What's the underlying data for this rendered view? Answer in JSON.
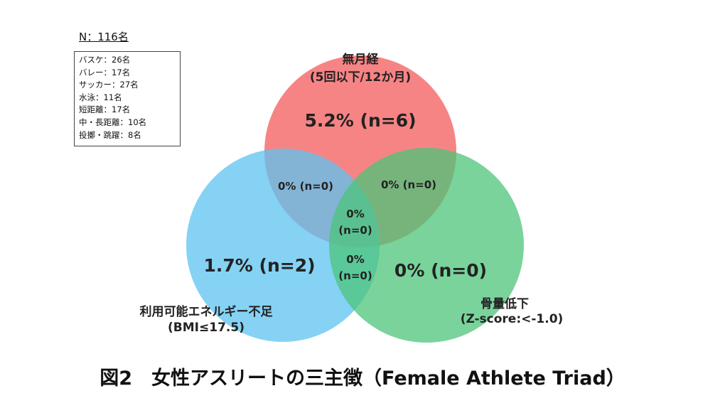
{
  "sample": {
    "total_label": "N：116名",
    "breakdown": [
      "バスケ：26名",
      "バレー：17名",
      "サッカー：27名",
      "水泳：11名",
      "短距離：17名",
      "中・長距離：10名",
      "投擲・跳躍：8名"
    ]
  },
  "venn": {
    "sets": {
      "amenorrhea": {
        "name": "無月経",
        "criterion": "(5回以下/12か月)",
        "value": "5.2% (n=6)",
        "color": "#f45b5b"
      },
      "low_energy": {
        "name": "利用可能エネルギー不足",
        "criterion": "(BMI≤17.5)",
        "value": "1.7% (n=2)",
        "color": "#5cc3f0"
      },
      "bone_loss": {
        "name": "骨量低下",
        "criterion": "(Z-score:<-1.0)",
        "value": "0% (n=0)",
        "color": "#4cc47a"
      }
    },
    "overlaps": {
      "amenorrhea_low_energy": "0% (n=0)",
      "amenorrhea_bone_loss": "0% (n=0)",
      "all_three_line1": "0%",
      "all_three_line2": "(n=0)",
      "low_energy_bone_loss_line1": "0%",
      "low_energy_bone_loss_line2": "(n=0)"
    }
  },
  "caption": "図2　女性アスリートの三主徴（Female Athlete Triad）"
}
